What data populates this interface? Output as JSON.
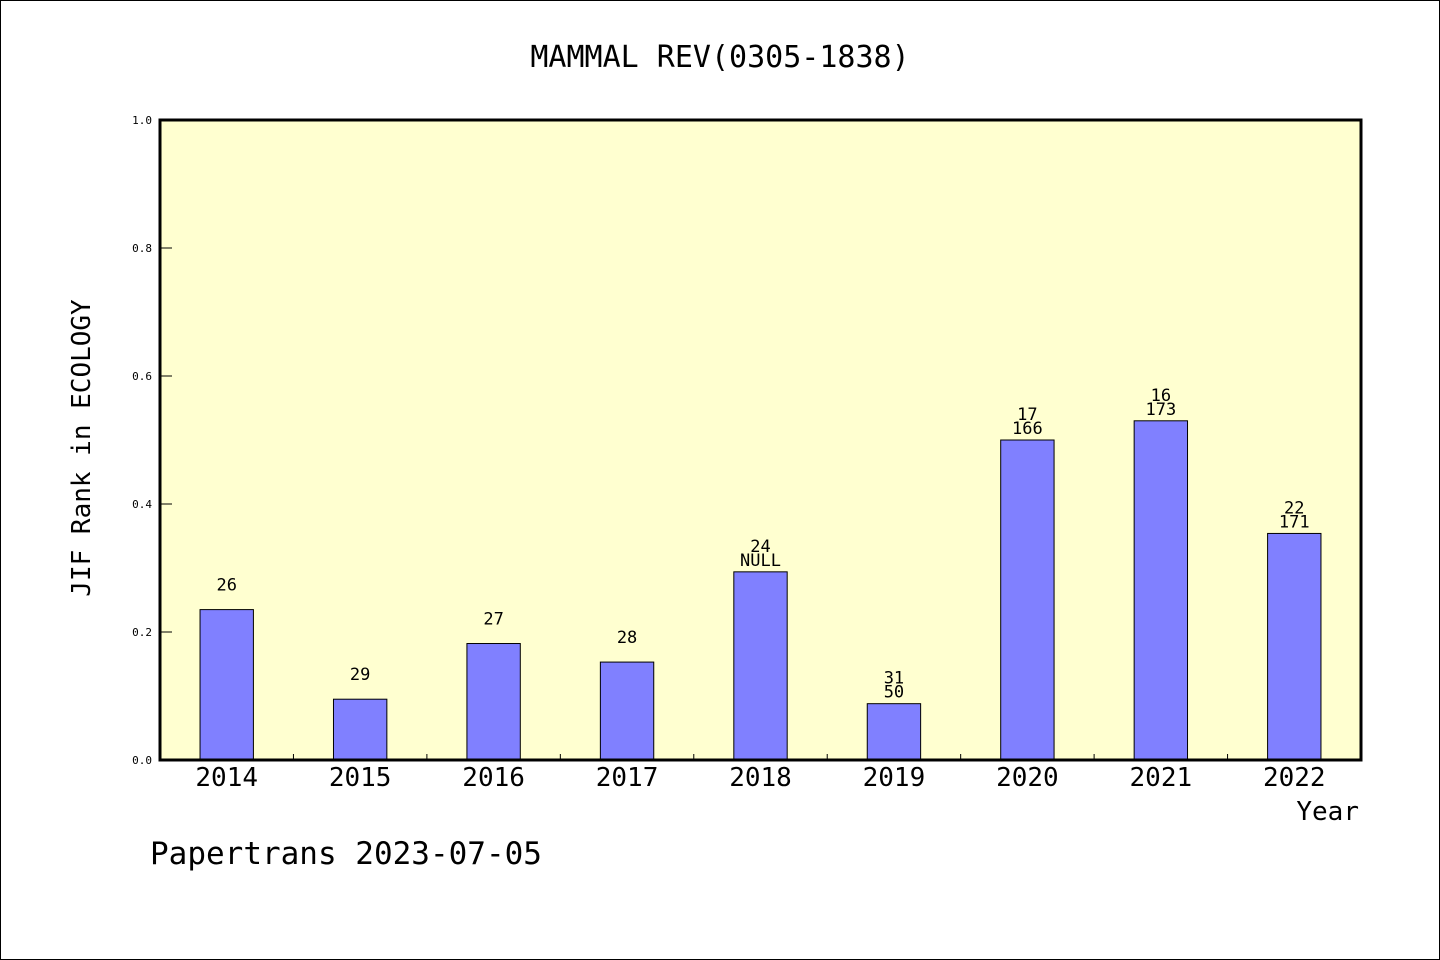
{
  "colors": {
    "plot_background": "#ffffd0",
    "bar_fill": "#8080ff",
    "bar_stroke": "#000000"
  },
  "footer": "Papertrans 2023-07-05",
  "chart_data": {
    "type": "bar",
    "title": "MAMMAL REV(0305-1838)",
    "xlabel": "Year",
    "ylabel": "JIF Rank in ECOLOGY",
    "ylim": [
      0,
      1.0
    ],
    "yticks": [
      "0.0",
      "0.2",
      "0.4",
      "0.6",
      "0.8",
      "1.0"
    ],
    "grid": false,
    "categories": [
      "2014",
      "2015",
      "2016",
      "2017",
      "2018",
      "2019",
      "2020",
      "2021",
      "2022"
    ],
    "values": [
      0.235,
      0.095,
      0.182,
      0.153,
      0.294,
      0.088,
      0.5,
      0.53,
      0.354
    ],
    "labels_top": [
      "26",
      "29",
      "27",
      "28",
      "24",
      "31",
      "17",
      "16",
      "22"
    ],
    "labels_bottom": [
      "",
      "",
      "",
      "",
      "NULL",
      "50",
      "166",
      "173",
      "171"
    ]
  }
}
